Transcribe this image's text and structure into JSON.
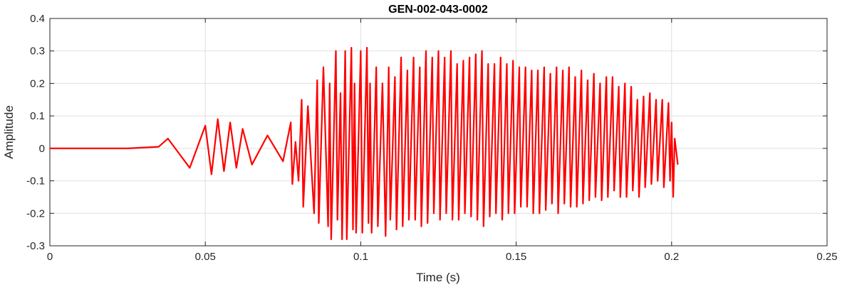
{
  "chart_data": {
    "type": "line",
    "title": "GEN-002-043-0002",
    "xlabel": "Time (s)",
    "ylabel": "Amplitude",
    "xlim": [
      0,
      0.25
    ],
    "ylim": [
      -0.3,
      0.4
    ],
    "xticks": [
      0,
      0.05,
      0.1,
      0.15,
      0.2,
      0.25
    ],
    "xtick_labels": [
      "0",
      "0.05",
      "0.1",
      "0.15",
      "0.2",
      "0.25"
    ],
    "yticks": [
      -0.3,
      -0.2,
      -0.1,
      0,
      0.1,
      0.2,
      0.3,
      0.4
    ],
    "ytick_labels": [
      "-0.3",
      "-0.2",
      "-0.1",
      "0",
      "0.1",
      "0.2",
      "0.3",
      "0.4"
    ],
    "grid": true,
    "line_color": "#ff0000",
    "series": [
      {
        "color": "#ff0000",
        "x": [
          0,
          0.025,
          0.035,
          0.038,
          0.045,
          0.05,
          0.052,
          0.054,
          0.056,
          0.058,
          0.06,
          0.062,
          0.065,
          0.07,
          0.075,
          0.0775,
          0.078,
          0.079,
          0.08,
          0.081,
          0.0815,
          0.083,
          0.085,
          0.086,
          0.0865,
          0.088,
          0.0895,
          0.09,
          0.0905,
          0.092,
          0.0925,
          0.0935,
          0.094,
          0.095,
          0.0955,
          0.097,
          0.0975,
          0.098,
          0.0985,
          0.1,
          0.1005,
          0.102,
          0.1025,
          0.103,
          0.1035,
          0.105,
          0.1055,
          0.107,
          0.108,
          0.109,
          0.1095,
          0.111,
          0.1115,
          0.113,
          0.1135,
          0.115,
          0.1155,
          0.117,
          0.1175,
          0.119,
          0.1195,
          0.121,
          0.1215,
          0.123,
          0.1235,
          0.125,
          0.1255,
          0.127,
          0.1275,
          0.129,
          0.1295,
          0.131,
          0.1315,
          0.133,
          0.1335,
          0.135,
          0.1355,
          0.137,
          0.1375,
          0.139,
          0.1395,
          0.141,
          0.1415,
          0.143,
          0.1435,
          0.145,
          0.1455,
          0.147,
          0.1475,
          0.149,
          0.1495,
          0.151,
          0.1515,
          0.153,
          0.1535,
          0.155,
          0.1555,
          0.157,
          0.1575,
          0.159,
          0.1595,
          0.161,
          0.1615,
          0.163,
          0.1635,
          0.165,
          0.1655,
          0.167,
          0.1675,
          0.169,
          0.1695,
          0.171,
          0.1715,
          0.173,
          0.1735,
          0.175,
          0.1755,
          0.177,
          0.1775,
          0.179,
          0.1795,
          0.181,
          0.1815,
          0.183,
          0.1835,
          0.185,
          0.1855,
          0.187,
          0.1875,
          0.189,
          0.1895,
          0.191,
          0.1915,
          0.193,
          0.1935,
          0.195,
          0.1955,
          0.197,
          0.1975,
          0.199,
          0.1995,
          0.2,
          0.2005,
          0.201,
          0.202
        ],
        "y": [
          0,
          0,
          0.005,
          0.03,
          -0.06,
          0.07,
          -0.08,
          0.09,
          -0.07,
          0.08,
          -0.06,
          0.06,
          -0.05,
          0.04,
          -0.04,
          0.08,
          -0.11,
          0.02,
          -0.1,
          0.15,
          -0.18,
          0.13,
          -0.2,
          0.21,
          -0.23,
          0.25,
          -0.24,
          0.2,
          -0.28,
          0.3,
          -0.22,
          0.17,
          -0.28,
          0.3,
          -0.28,
          0.31,
          -0.25,
          0.2,
          -0.26,
          0.3,
          -0.26,
          0.31,
          -0.23,
          0.2,
          -0.26,
          0.25,
          -0.24,
          0.2,
          -0.27,
          0.25,
          -0.22,
          0.22,
          -0.25,
          0.28,
          -0.24,
          0.24,
          -0.22,
          0.28,
          -0.22,
          0.25,
          -0.24,
          0.3,
          -0.23,
          0.28,
          -0.2,
          0.3,
          -0.22,
          0.28,
          -0.2,
          0.3,
          -0.22,
          0.26,
          -0.22,
          0.27,
          -0.2,
          0.28,
          -0.21,
          0.29,
          -0.22,
          0.3,
          -0.24,
          0.26,
          -0.21,
          0.26,
          -0.2,
          0.28,
          -0.22,
          0.26,
          -0.2,
          0.27,
          -0.2,
          0.25,
          -0.18,
          0.25,
          -0.18,
          0.24,
          -0.2,
          0.24,
          -0.2,
          0.25,
          -0.19,
          0.23,
          -0.17,
          0.25,
          -0.2,
          0.24,
          -0.17,
          0.25,
          -0.18,
          0.22,
          -0.18,
          0.24,
          -0.17,
          0.21,
          -0.16,
          0.23,
          -0.15,
          0.2,
          -0.16,
          0.22,
          -0.15,
          0.22,
          -0.13,
          0.19,
          -0.15,
          0.2,
          -0.15,
          0.19,
          -0.13,
          0.15,
          -0.15,
          0.16,
          -0.12,
          0.17,
          -0.11,
          0.15,
          -0.1,
          0.15,
          -0.12,
          0.14,
          -0.1,
          0.08,
          -0.15,
          0.03,
          -0.05
        ]
      }
    ]
  }
}
